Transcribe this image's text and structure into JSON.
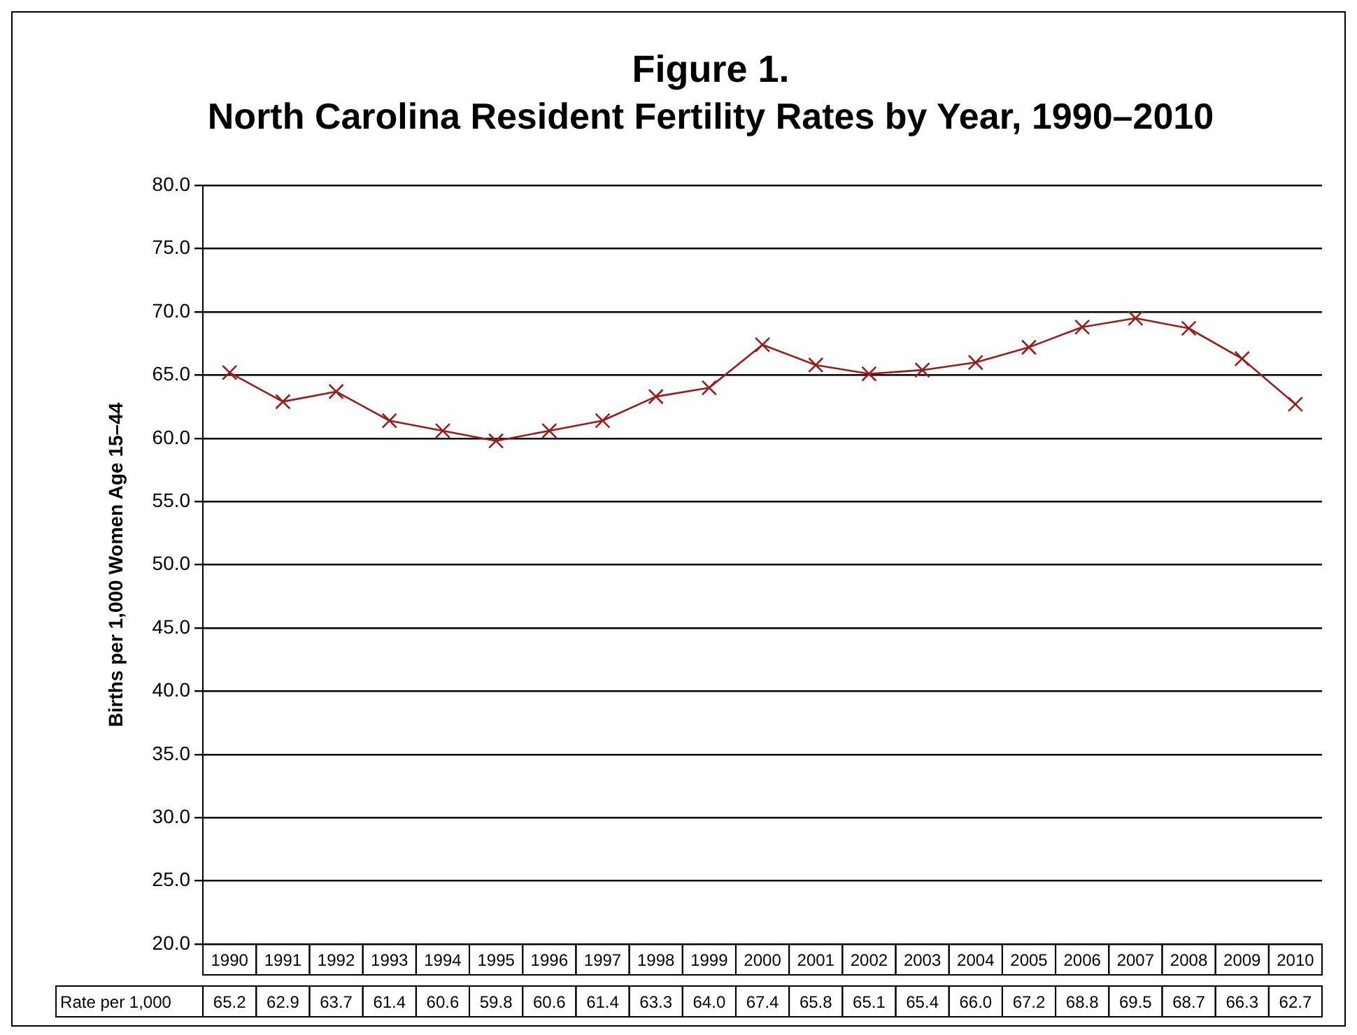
{
  "chart_data": {
    "type": "line",
    "title": "Figure 1.",
    "subtitle": "North Carolina Resident Fertility Rates by Year, 1990–2010",
    "ylabel": "Births per 1,000 Women Age 15–44",
    "categories": [
      "1990",
      "1991",
      "1992",
      "1993",
      "1994",
      "1995",
      "1996",
      "1997",
      "1998",
      "1999",
      "2000",
      "2001",
      "2002",
      "2003",
      "2004",
      "2005",
      "2006",
      "2007",
      "2008",
      "2009",
      "2010"
    ],
    "series": [
      {
        "name": "Rate per 1,000",
        "color": "#9b1c1c",
        "values": [
          65.2,
          62.9,
          63.7,
          61.4,
          60.6,
          59.8,
          60.6,
          61.4,
          63.3,
          64.0,
          67.4,
          65.8,
          65.1,
          65.4,
          66.0,
          67.2,
          68.8,
          69.5,
          68.7,
          66.3,
          62.7
        ],
        "value_labels": [
          "65.2",
          "62.9",
          "63.7",
          "61.4",
          "60.6",
          "59.8",
          "60.6",
          "61.4",
          "63.3",
          "64.0",
          "67.4",
          "65.8",
          "65.1",
          "65.4",
          "66.0",
          "67.2",
          "68.8",
          "69.5",
          "68.7",
          "66.3",
          "62.7"
        ]
      }
    ],
    "ylim": [
      20,
      80
    ],
    "yticks": [
      {
        "value": 20,
        "label": "20.0"
      },
      {
        "value": 25,
        "label": "25.0"
      },
      {
        "value": 30,
        "label": "30.0"
      },
      {
        "value": 35,
        "label": "35.0"
      },
      {
        "value": 40,
        "label": "40.0"
      },
      {
        "value": 45,
        "label": "45.0"
      },
      {
        "value": 50,
        "label": "50.0"
      },
      {
        "value": 55,
        "label": "55.0"
      },
      {
        "value": 60,
        "label": "60.0"
      },
      {
        "value": 65,
        "label": "65.0"
      },
      {
        "value": 70,
        "label": "70.0"
      },
      {
        "value": 75,
        "label": "75.0"
      },
      {
        "value": 80,
        "label": "80.0"
      }
    ],
    "grid": "y",
    "legend": false,
    "marker": "cross",
    "line_style": "solid"
  }
}
